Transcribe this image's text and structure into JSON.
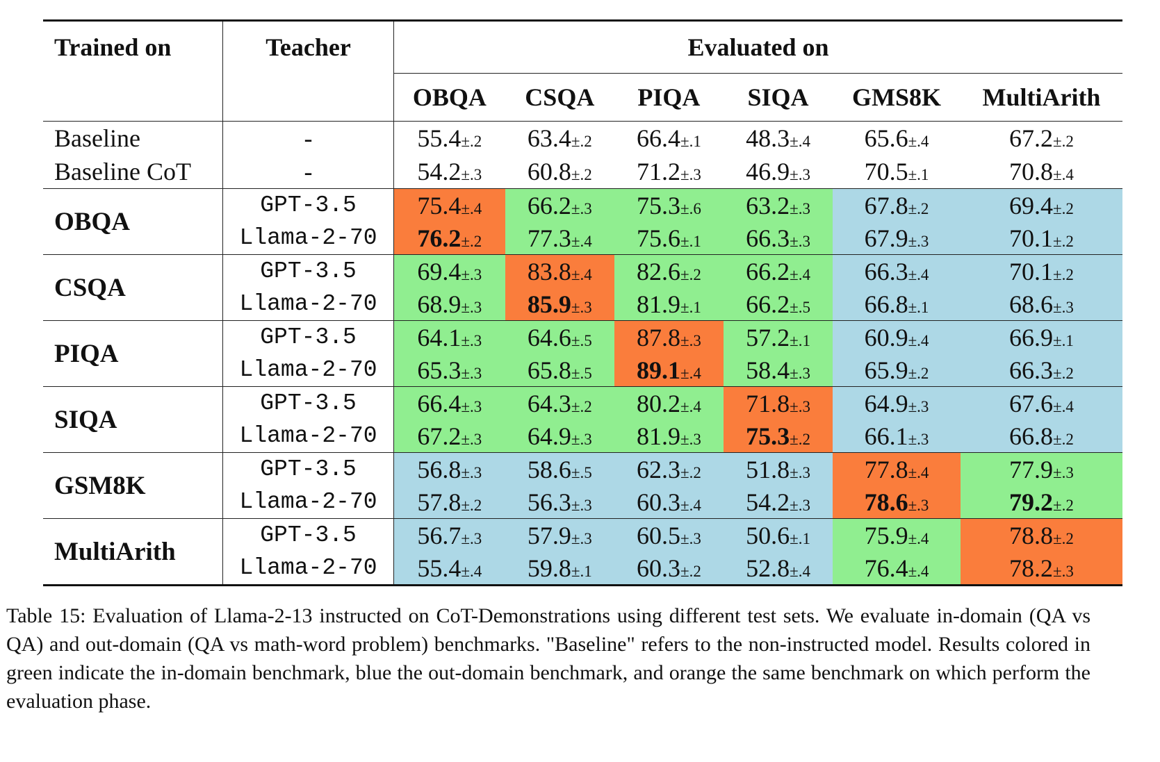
{
  "header": {
    "trained_on": "Trained on",
    "teacher": "Teacher",
    "evaluated_on": "Evaluated on",
    "benchmarks": [
      "OBQA",
      "CSQA",
      "PIQA",
      "SIQA",
      "GMS8K",
      "MultiArith"
    ]
  },
  "baselines": [
    {
      "label": "Baseline",
      "teacher": "-",
      "values": [
        [
          "55.4",
          "±.2"
        ],
        [
          "63.4",
          "±.2"
        ],
        [
          "66.4",
          "±.1"
        ],
        [
          "48.3",
          "±.4"
        ],
        [
          "65.6",
          "±.4"
        ],
        [
          "67.2",
          "±.2"
        ]
      ]
    },
    {
      "label": "Baseline CoT",
      "teacher": "-",
      "values": [
        [
          "54.2",
          "±.3"
        ],
        [
          "60.8",
          "±.2"
        ],
        [
          "71.2",
          "±.3"
        ],
        [
          "46.9",
          "±.3"
        ],
        [
          "70.5",
          "±.1"
        ],
        [
          "70.8",
          "±.4"
        ]
      ]
    }
  ],
  "groups": [
    {
      "trained_on": "OBQA",
      "colors": [
        "o",
        "g",
        "g",
        "g",
        "b",
        "b"
      ],
      "rows": [
        {
          "teacher": "GPT-3.5",
          "values": [
            [
              "75.4",
              "±.4"
            ],
            [
              "66.2",
              "±.3"
            ],
            [
              "75.3",
              "±.6"
            ],
            [
              "63.2",
              "±.3"
            ],
            [
              "67.8",
              "±.2"
            ],
            [
              "69.4",
              "±.2"
            ]
          ],
          "bold": []
        },
        {
          "teacher": "Llama-2-70",
          "values": [
            [
              "76.2",
              "±.2"
            ],
            [
              "77.3",
              "±.4"
            ],
            [
              "75.6",
              "±.1"
            ],
            [
              "66.3",
              "±.3"
            ],
            [
              "67.9",
              "±.3"
            ],
            [
              "70.1",
              "±.2"
            ]
          ],
          "bold": [
            0
          ]
        }
      ]
    },
    {
      "trained_on": "CSQA",
      "colors": [
        "g",
        "o",
        "g",
        "g",
        "b",
        "b"
      ],
      "rows": [
        {
          "teacher": "GPT-3.5",
          "values": [
            [
              "69.4",
              "±.3"
            ],
            [
              "83.8",
              "±.4"
            ],
            [
              "82.6",
              "±.2"
            ],
            [
              "66.2",
              "±.4"
            ],
            [
              "66.3",
              "±.4"
            ],
            [
              "70.1",
              "±.2"
            ]
          ],
          "bold": []
        },
        {
          "teacher": "Llama-2-70",
          "values": [
            [
              "68.9",
              "±.3"
            ],
            [
              "85.9",
              "±.3"
            ],
            [
              "81.9",
              "±.1"
            ],
            [
              "66.2",
              "±.5"
            ],
            [
              "66.8",
              "±.1"
            ],
            [
              "68.6",
              "±.3"
            ]
          ],
          "bold": [
            1
          ]
        }
      ]
    },
    {
      "trained_on": "PIQA",
      "colors": [
        "g",
        "g",
        "o",
        "g",
        "b",
        "b"
      ],
      "rows": [
        {
          "teacher": "GPT-3.5",
          "values": [
            [
              "64.1",
              "±.3"
            ],
            [
              "64.6",
              "±.5"
            ],
            [
              "87.8",
              "±.3"
            ],
            [
              "57.2",
              "±.1"
            ],
            [
              "60.9",
              "±.4"
            ],
            [
              "66.9",
              "±.1"
            ]
          ],
          "bold": []
        },
        {
          "teacher": "Llama-2-70",
          "values": [
            [
              "65.3",
              "±.3"
            ],
            [
              "65.8",
              "±.5"
            ],
            [
              "89.1",
              "±.4"
            ],
            [
              "58.4",
              "±.3"
            ],
            [
              "65.9",
              "±.2"
            ],
            [
              "66.3",
              "±.2"
            ]
          ],
          "bold": [
            2
          ]
        }
      ]
    },
    {
      "trained_on": "SIQA",
      "colors": [
        "g",
        "g",
        "g",
        "o",
        "b",
        "b"
      ],
      "rows": [
        {
          "teacher": "GPT-3.5",
          "values": [
            [
              "66.4",
              "±.3"
            ],
            [
              "64.3",
              "±.2"
            ],
            [
              "80.2",
              "±.4"
            ],
            [
              "71.8",
              "±.3"
            ],
            [
              "64.9",
              "±.3"
            ],
            [
              "67.6",
              "±.4"
            ]
          ],
          "bold": []
        },
        {
          "teacher": "Llama-2-70",
          "values": [
            [
              "67.2",
              "±.3"
            ],
            [
              "64.9",
              "±.3"
            ],
            [
              "81.9",
              "±.3"
            ],
            [
              "75.3",
              "±.2"
            ],
            [
              "66.1",
              "±.3"
            ],
            [
              "66.8",
              "±.2"
            ]
          ],
          "bold": [
            3
          ]
        }
      ]
    },
    {
      "trained_on": "GSM8K",
      "colors": [
        "b",
        "b",
        "b",
        "b",
        "o",
        "g"
      ],
      "rows": [
        {
          "teacher": "GPT-3.5",
          "values": [
            [
              "56.8",
              "±.3"
            ],
            [
              "58.6",
              "±.5"
            ],
            [
              "62.3",
              "±.2"
            ],
            [
              "51.8",
              "±.3"
            ],
            [
              "77.8",
              "±.4"
            ],
            [
              "77.9",
              "±.3"
            ]
          ],
          "bold": []
        },
        {
          "teacher": "Llama-2-70",
          "values": [
            [
              "57.8",
              "±.2"
            ],
            [
              "56.3",
              "±.3"
            ],
            [
              "60.3",
              "±.4"
            ],
            [
              "54.2",
              "±.3"
            ],
            [
              "78.6",
              "±.3"
            ],
            [
              "79.2",
              "±.2"
            ]
          ],
          "bold": [
            4,
            5
          ]
        }
      ]
    },
    {
      "trained_on": "MultiArith",
      "colors": [
        "b",
        "b",
        "b",
        "b",
        "g",
        "o"
      ],
      "rows": [
        {
          "teacher": "GPT-3.5",
          "values": [
            [
              "56.7",
              "±.3"
            ],
            [
              "57.9",
              "±.3"
            ],
            [
              "60.5",
              "±.3"
            ],
            [
              "50.6",
              "±.1"
            ],
            [
              "75.9",
              "±.4"
            ],
            [
              "78.8",
              "±.2"
            ]
          ],
          "bold": []
        },
        {
          "teacher": "Llama-2-70",
          "values": [
            [
              "55.4",
              "±.4"
            ],
            [
              "59.8",
              "±.1"
            ],
            [
              "60.3",
              "±.2"
            ],
            [
              "52.8",
              "±.4"
            ],
            [
              "76.4",
              "±.4"
            ],
            [
              "78.2",
              "±.3"
            ]
          ],
          "bold": []
        }
      ]
    }
  ],
  "colors": {
    "g": "#90ee90",
    "b": "#add8e6",
    "o": "#fa7d3c"
  },
  "caption": "Table 15: Evaluation of Llama-2-13 instructed on CoT-Demonstrations using different test sets. We evaluate in-domain (QA vs QA) and out-domain (QA vs math-word problem) benchmarks. \"Baseline\" refers to the non-instructed model. Results colored in green indicate the in-domain benchmark, blue the out-domain benchmark, and orange the same benchmark on which perform the evaluation phase."
}
